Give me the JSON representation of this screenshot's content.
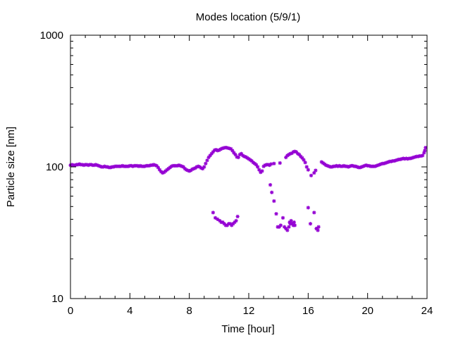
{
  "chart_data": {
    "type": "scatter",
    "title": "Modes location (5/9/1)",
    "xlabel": "Time [hour]",
    "ylabel": "Particle size [nm]",
    "xlim": [
      0,
      24
    ],
    "ylim": [
      10,
      1000
    ],
    "yscale": "log",
    "xticks": [
      0,
      4,
      8,
      12,
      16,
      20,
      24
    ],
    "xtick_labels": [
      "0",
      "4",
      "8",
      "12",
      "16",
      "20",
      "24"
    ],
    "yticks": [
      10,
      100,
      1000
    ],
    "ytick_labels": [
      "10",
      "100",
      "1000"
    ],
    "grid": false,
    "legend": "none",
    "colors": {
      "marker": "#9400d3",
      "axis": "#000000"
    },
    "series": [
      {
        "values": [
          [
            0.0,
            103
          ],
          [
            0.1,
            104
          ],
          [
            0.2,
            103
          ],
          [
            0.3,
            103
          ],
          [
            0.4,
            104
          ],
          [
            0.5,
            104
          ],
          [
            0.6,
            105
          ],
          [
            0.7,
            104
          ],
          [
            0.8,
            104
          ],
          [
            0.9,
            103
          ],
          [
            1.0,
            104
          ],
          [
            1.1,
            104
          ],
          [
            1.2,
            103
          ],
          [
            1.3,
            104
          ],
          [
            1.4,
            104
          ],
          [
            1.5,
            103
          ],
          [
            1.6,
            103
          ],
          [
            1.7,
            104
          ],
          [
            1.8,
            103
          ],
          [
            1.9,
            102
          ],
          [
            2.0,
            101
          ],
          [
            2.1,
            100
          ],
          [
            2.2,
            100
          ],
          [
            2.3,
            101
          ],
          [
            2.4,
            100
          ],
          [
            2.5,
            100
          ],
          [
            2.6,
            99
          ],
          [
            2.7,
            99
          ],
          [
            2.8,
            100
          ],
          [
            2.9,
            100
          ],
          [
            3.0,
            101
          ],
          [
            3.1,
            101
          ],
          [
            3.2,
            101
          ],
          [
            3.3,
            101
          ],
          [
            3.4,
            101
          ],
          [
            3.5,
            102
          ],
          [
            3.6,
            101
          ],
          [
            3.7,
            101
          ],
          [
            3.8,
            101
          ],
          [
            3.9,
            101
          ],
          [
            4.0,
            102
          ],
          [
            4.1,
            102
          ],
          [
            4.2,
            101
          ],
          [
            4.3,
            102
          ],
          [
            4.4,
            102
          ],
          [
            4.5,
            102
          ],
          [
            4.6,
            101
          ],
          [
            4.7,
            102
          ],
          [
            4.8,
            101
          ],
          [
            4.9,
            101
          ],
          [
            5.0,
            101
          ],
          [
            5.1,
            102
          ],
          [
            5.2,
            102
          ],
          [
            5.3,
            102
          ],
          [
            5.4,
            103
          ],
          [
            5.5,
            103
          ],
          [
            5.6,
            104
          ],
          [
            5.7,
            103
          ],
          [
            5.8,
            102
          ],
          [
            5.9,
            99
          ],
          [
            6.0,
            95
          ],
          [
            6.1,
            92
          ],
          [
            6.2,
            90
          ],
          [
            6.3,
            91
          ],
          [
            6.4,
            93
          ],
          [
            6.5,
            95
          ],
          [
            6.6,
            97
          ],
          [
            6.7,
            99
          ],
          [
            6.8,
            101
          ],
          [
            6.9,
            102
          ],
          [
            7.0,
            102
          ],
          [
            7.1,
            102
          ],
          [
            7.2,
            102
          ],
          [
            7.3,
            103
          ],
          [
            7.4,
            102
          ],
          [
            7.5,
            101
          ],
          [
            7.6,
            100
          ],
          [
            7.7,
            97
          ],
          [
            7.8,
            95
          ],
          [
            7.9,
            94
          ],
          [
            8.0,
            93
          ],
          [
            8.1,
            94
          ],
          [
            8.2,
            96
          ],
          [
            8.3,
            97
          ],
          [
            8.4,
            98
          ],
          [
            8.5,
            100
          ],
          [
            8.6,
            101
          ],
          [
            8.7,
            100
          ],
          [
            8.8,
            98
          ],
          [
            8.9,
            97
          ],
          [
            9.0,
            100
          ],
          [
            9.1,
            106
          ],
          [
            9.2,
            112
          ],
          [
            9.3,
            118
          ],
          [
            9.4,
            122
          ],
          [
            9.5,
            126
          ],
          [
            9.6,
            130
          ],
          [
            9.7,
            134
          ],
          [
            9.8,
            135
          ],
          [
            9.9,
            133
          ],
          [
            10.0,
            134
          ],
          [
            10.1,
            136
          ],
          [
            10.2,
            138
          ],
          [
            10.3,
            139
          ],
          [
            10.4,
            140
          ],
          [
            10.5,
            140
          ],
          [
            10.6,
            139
          ],
          [
            10.7,
            138
          ],
          [
            10.8,
            137
          ],
          [
            10.9,
            133
          ],
          [
            11.0,
            128
          ],
          [
            11.1,
            124
          ],
          [
            11.2,
            119
          ],
          [
            11.3,
            118
          ],
          [
            11.4,
            124
          ],
          [
            11.5,
            126
          ],
          [
            11.6,
            122
          ],
          [
            11.7,
            120
          ],
          [
            11.8,
            119
          ],
          [
            11.9,
            117
          ],
          [
            12.0,
            115
          ],
          [
            12.1,
            113
          ],
          [
            12.2,
            111
          ],
          [
            12.3,
            108
          ],
          [
            12.4,
            106
          ],
          [
            12.5,
            104
          ],
          [
            12.6,
            100
          ],
          [
            12.7,
            95
          ],
          [
            12.8,
            91
          ],
          [
            12.9,
            93
          ],
          [
            13.0,
            101
          ],
          [
            13.1,
            103
          ],
          [
            13.2,
            104
          ],
          [
            13.3,
            104
          ],
          [
            13.4,
            103
          ],
          [
            13.5,
            105
          ],
          [
            13.7,
            106
          ],
          [
            14.1,
            107
          ],
          [
            14.5,
            118
          ],
          [
            14.6,
            122
          ],
          [
            14.7,
            124
          ],
          [
            14.8,
            126
          ],
          [
            14.9,
            127
          ],
          [
            15.0,
            130
          ],
          [
            15.1,
            131
          ],
          [
            15.2,
            130
          ],
          [
            15.3,
            126
          ],
          [
            15.4,
            124
          ],
          [
            15.5,
            120
          ],
          [
            15.6,
            117
          ],
          [
            15.7,
            113
          ],
          [
            15.8,
            108
          ],
          [
            15.9,
            100
          ],
          [
            16.0,
            95
          ],
          [
            16.2,
            86
          ],
          [
            16.4,
            90
          ],
          [
            16.5,
            94
          ],
          [
            16.9,
            109
          ],
          [
            17.0,
            107
          ],
          [
            17.1,
            105
          ],
          [
            17.2,
            103
          ],
          [
            17.3,
            102
          ],
          [
            17.4,
            101
          ],
          [
            17.5,
            100
          ],
          [
            17.6,
            100
          ],
          [
            17.7,
            101
          ],
          [
            17.8,
            101
          ],
          [
            17.9,
            102
          ],
          [
            18.0,
            101
          ],
          [
            18.1,
            102
          ],
          [
            18.2,
            101
          ],
          [
            18.3,
            101
          ],
          [
            18.4,
            102
          ],
          [
            18.5,
            101
          ],
          [
            18.6,
            101
          ],
          [
            18.7,
            100
          ],
          [
            18.8,
            101
          ],
          [
            18.9,
            102
          ],
          [
            19.0,
            102
          ],
          [
            19.1,
            101
          ],
          [
            19.2,
            101
          ],
          [
            19.3,
            100
          ],
          [
            19.4,
            99
          ],
          [
            19.5,
            99
          ],
          [
            19.6,
            100
          ],
          [
            19.7,
            101
          ],
          [
            19.8,
            102
          ],
          [
            19.9,
            103
          ],
          [
            20.0,
            102
          ],
          [
            20.1,
            102
          ],
          [
            20.2,
            101
          ],
          [
            20.3,
            101
          ],
          [
            20.4,
            101
          ],
          [
            20.5,
            101
          ],
          [
            20.6,
            102
          ],
          [
            20.7,
            103
          ],
          [
            20.8,
            104
          ],
          [
            20.9,
            105
          ],
          [
            21.0,
            106
          ],
          [
            21.1,
            106
          ],
          [
            21.2,
            107
          ],
          [
            21.3,
            108
          ],
          [
            21.4,
            109
          ],
          [
            21.5,
            110
          ],
          [
            21.6,
            110
          ],
          [
            21.7,
            111
          ],
          [
            21.8,
            111
          ],
          [
            21.9,
            112
          ],
          [
            22.0,
            113
          ],
          [
            22.1,
            114
          ],
          [
            22.2,
            114
          ],
          [
            22.3,
            115
          ],
          [
            22.4,
            116
          ],
          [
            22.5,
            115
          ],
          [
            22.6,
            116
          ],
          [
            22.7,
            115
          ],
          [
            22.8,
            116
          ],
          [
            22.9,
            116
          ],
          [
            23.0,
            117
          ],
          [
            23.1,
            118
          ],
          [
            23.2,
            119
          ],
          [
            23.3,
            120
          ],
          [
            23.4,
            120
          ],
          [
            23.5,
            121
          ],
          [
            23.6,
            121
          ],
          [
            23.7,
            122
          ],
          [
            23.8,
            128
          ],
          [
            23.85,
            133
          ],
          [
            23.9,
            140
          ],
          [
            9.6,
            45
          ],
          [
            9.75,
            41
          ],
          [
            9.9,
            40
          ],
          [
            10.05,
            39
          ],
          [
            10.15,
            38
          ],
          [
            10.25,
            38
          ],
          [
            10.35,
            37
          ],
          [
            10.45,
            36
          ],
          [
            10.55,
            36
          ],
          [
            10.65,
            37
          ],
          [
            10.75,
            37
          ],
          [
            10.85,
            36
          ],
          [
            10.95,
            37
          ],
          [
            11.05,
            38
          ],
          [
            11.15,
            39
          ],
          [
            11.25,
            42
          ],
          [
            13.45,
            73
          ],
          [
            13.55,
            64
          ],
          [
            13.7,
            55
          ],
          [
            13.85,
            44
          ],
          [
            13.95,
            35
          ],
          [
            14.05,
            35
          ],
          [
            14.15,
            36
          ],
          [
            14.3,
            41
          ],
          [
            14.4,
            35
          ],
          [
            14.5,
            34
          ],
          [
            14.6,
            33
          ],
          [
            14.7,
            35
          ],
          [
            14.75,
            38
          ],
          [
            14.8,
            37
          ],
          [
            14.85,
            39
          ],
          [
            14.9,
            37
          ],
          [
            15.0,
            36
          ],
          [
            15.05,
            38
          ],
          [
            15.1,
            36
          ],
          [
            16.0,
            49
          ],
          [
            16.15,
            37
          ],
          [
            16.4,
            45
          ],
          [
            16.55,
            34
          ],
          [
            16.65,
            33
          ],
          [
            16.7,
            35
          ]
        ]
      }
    ]
  }
}
